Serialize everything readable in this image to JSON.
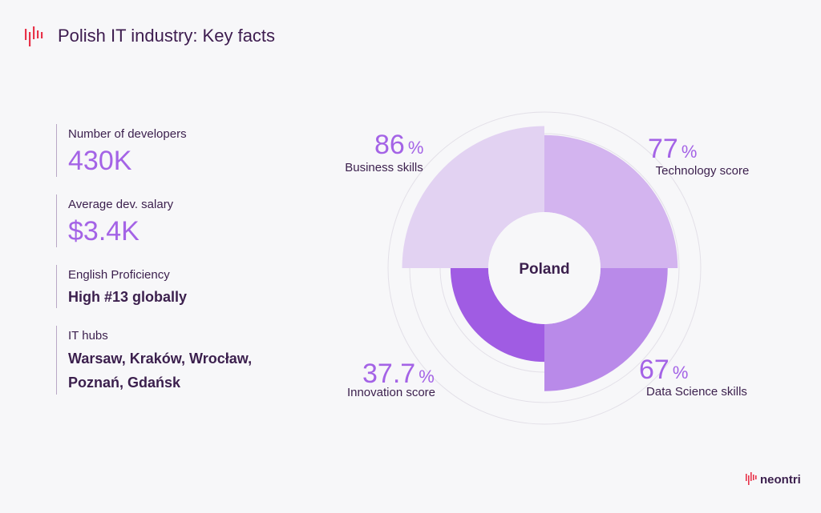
{
  "header": {
    "title": "Polish IT industry: Key facts"
  },
  "facts": [
    {
      "label": "Number of developers",
      "value": "430K"
    },
    {
      "label": "Average dev. salary",
      "value": "$3.4K"
    },
    {
      "label": "English Proficiency",
      "value": "High #13 globally"
    },
    {
      "label": "IT hubs",
      "value_lines": [
        "Warsaw, Kraków, Wrocław,",
        "Poznań, Gdańsk"
      ]
    }
  ],
  "chart_data": {
    "type": "pie",
    "center_label": "Poland",
    "segments": [
      {
        "name": "Technology score",
        "value": 77,
        "display": "77",
        "color": "#d3b4ef"
      },
      {
        "name": "Data Science skills",
        "value": 67,
        "display": "67",
        "color": "#b98ae9"
      },
      {
        "name": "Innovation score",
        "value": 37.7,
        "display": "37.7",
        "color": "#a05ce3"
      },
      {
        "name": "Business skills",
        "value": 86,
        "display": "86",
        "color": "#e2d2f2"
      }
    ],
    "unit": "%"
  },
  "brand": {
    "name": "neontri"
  },
  "colors": {
    "accent": "#a463e6",
    "text": "#3b1f4d",
    "logo_red": "#e8334a"
  },
  "icons": {
    "header_logo": "soundwave-logo-icon",
    "brand_logo": "soundwave-logo-icon"
  }
}
